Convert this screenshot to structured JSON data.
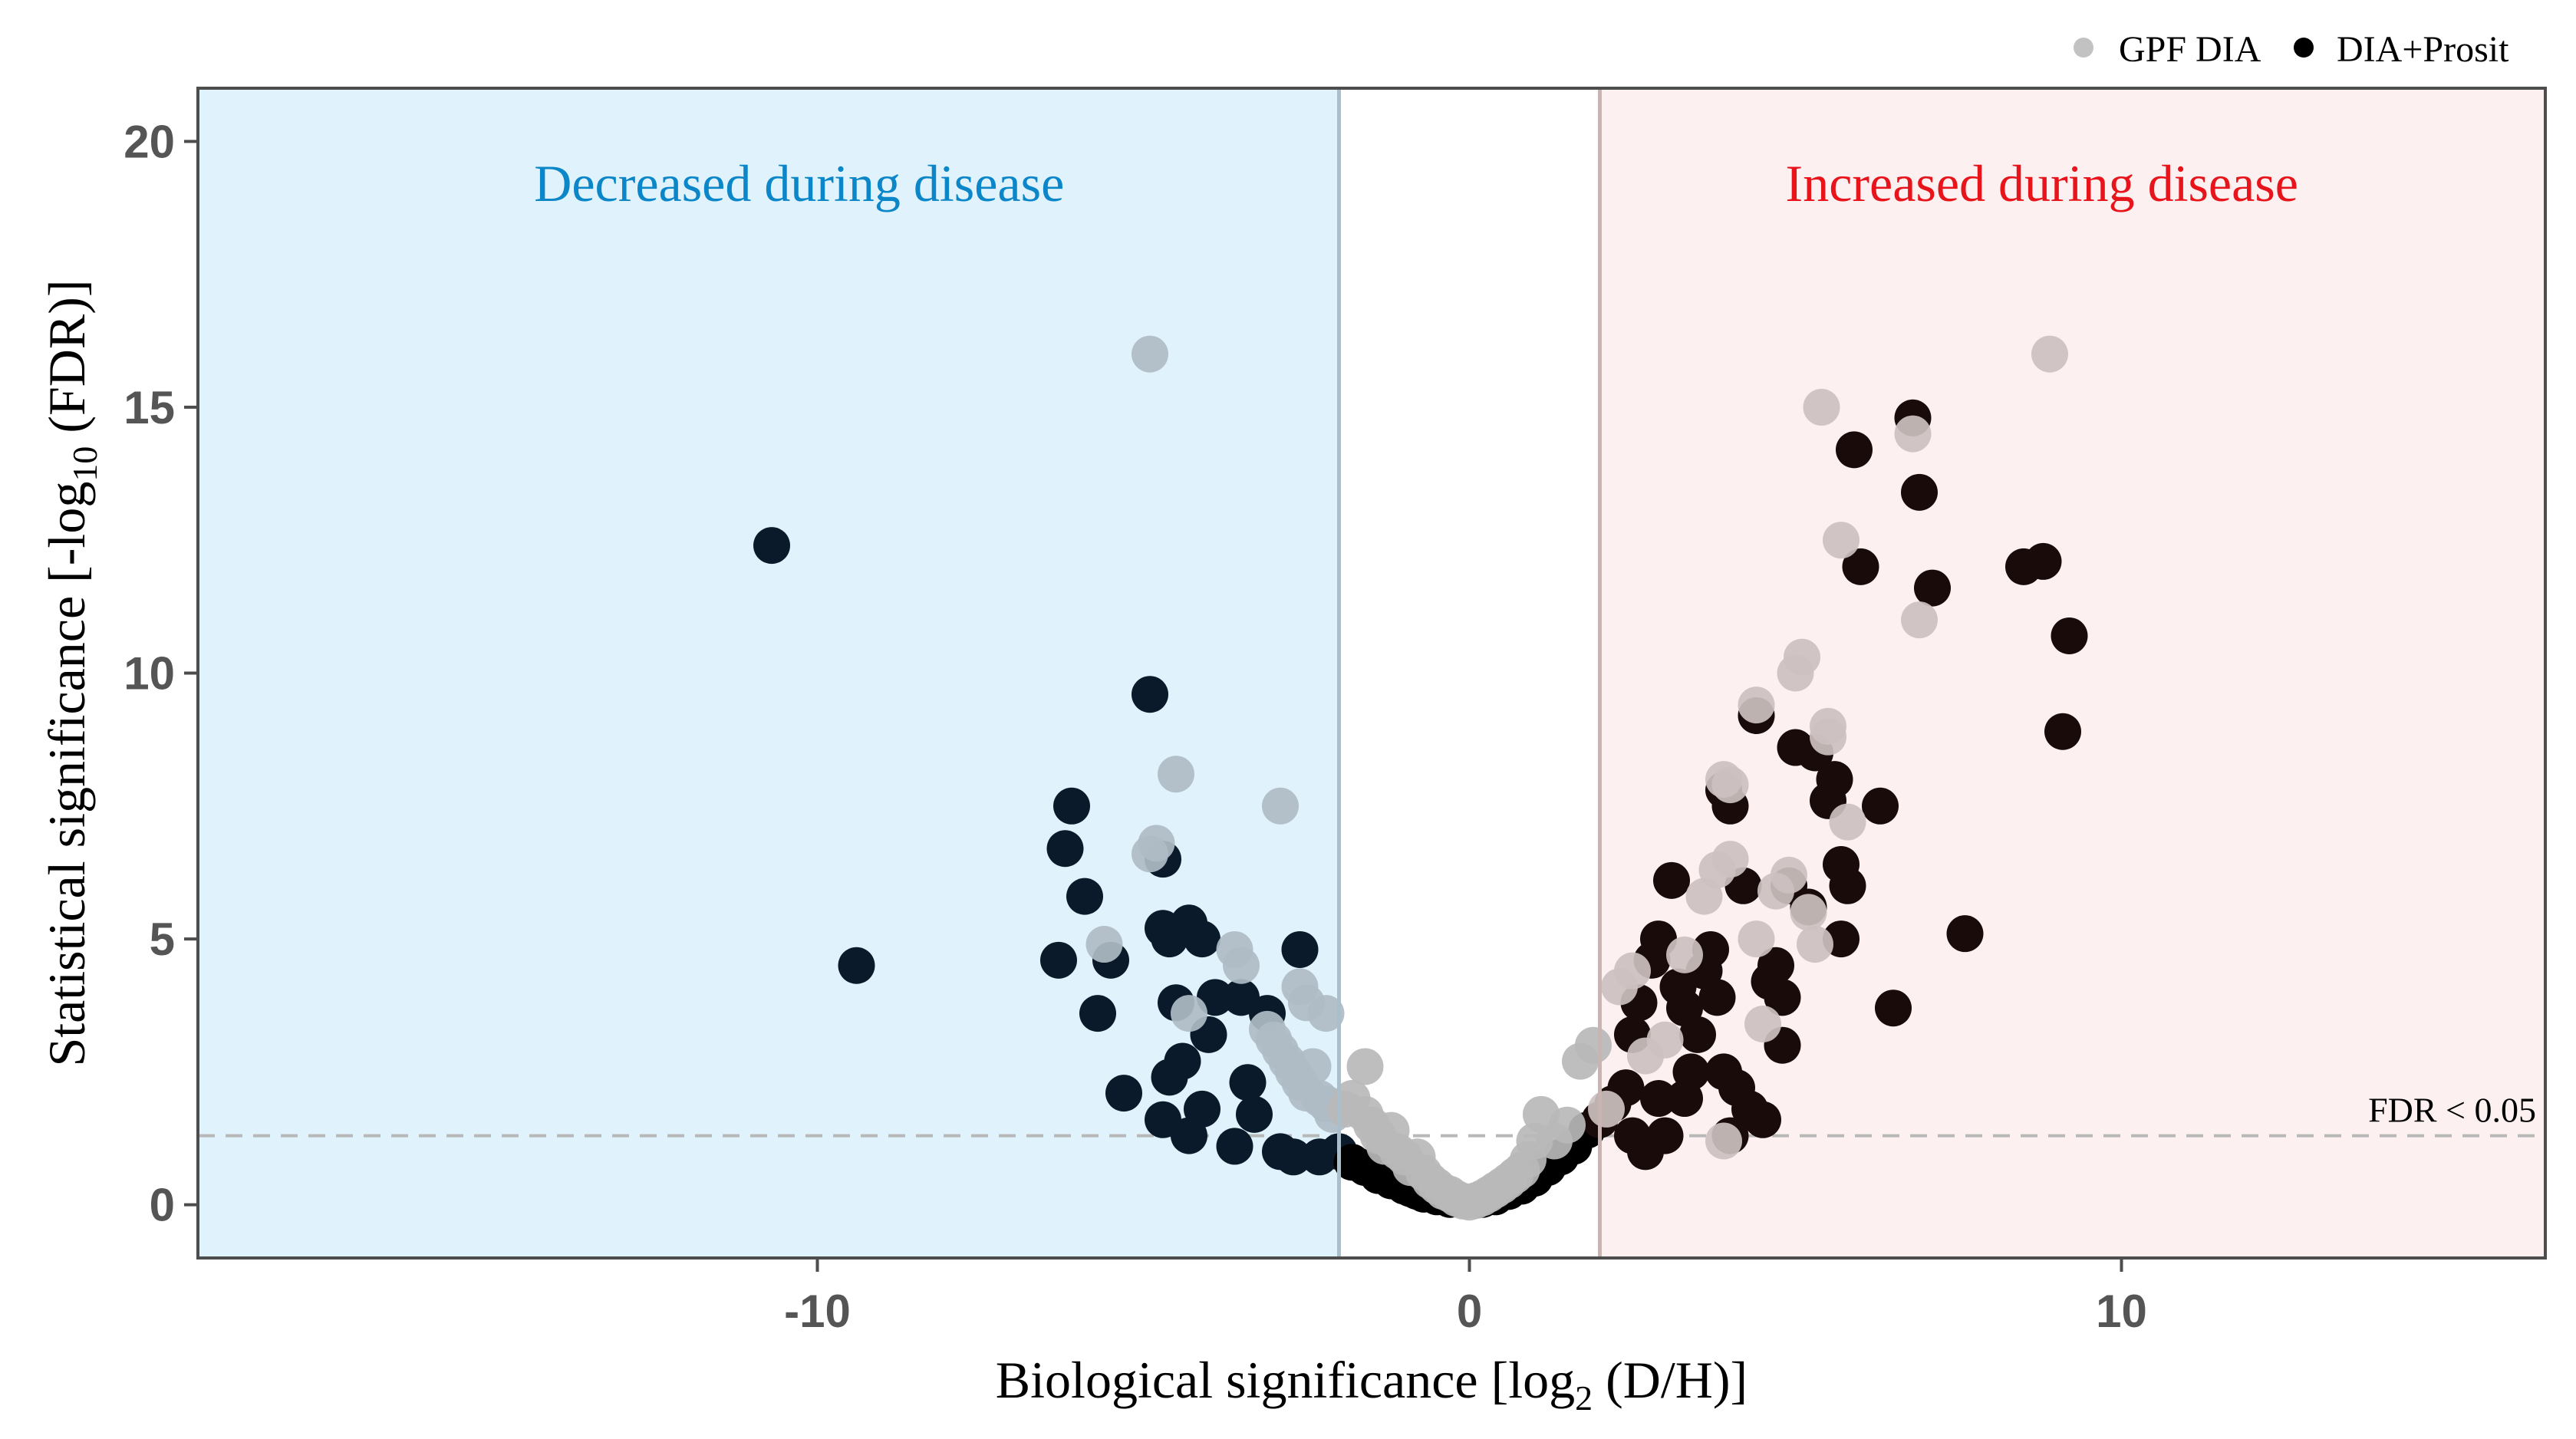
{
  "chart_data": {
    "type": "scatter",
    "xlabel_main": "Biological significance [log",
    "xlabel_sub": "2",
    "xlabel_tail": " (D/H)]",
    "ylabel_main": "Statistical significance [-log",
    "ylabel_sub": "10",
    "ylabel_tail": " (FDR)]",
    "xlim": [
      -19.5,
      16.5
    ],
    "ylim": [
      -1,
      21
    ],
    "x_ticks": [
      -10,
      0,
      10
    ],
    "y_ticks": [
      0,
      5,
      10,
      15,
      20
    ],
    "x_tick_labels": [
      "-10",
      "0",
      "10"
    ],
    "y_tick_labels": [
      "0",
      "5",
      "10",
      "15",
      "20"
    ],
    "grid": false,
    "legend_position": "top-right",
    "fold_change_threshold": 2,
    "fdr_threshold_y": 1.3,
    "threshold_label": "FDR < 0.05",
    "regions": {
      "decreased": {
        "label": "Decreased during disease",
        "color": "#0a86c9",
        "fill": "#e0f2fb"
      },
      "increased": {
        "label": "Increased during disease",
        "color": "#e8141c",
        "fill": "#fcf1f0"
      }
    },
    "series": [
      {
        "name": "GPF DIA",
        "color": "#c2c2c2",
        "points": [
          [
            -4.9,
            16
          ],
          [
            -2.9,
            7.5
          ],
          [
            -4.5,
            8.1
          ],
          [
            -4.9,
            6.6
          ],
          [
            -4.8,
            6.8
          ],
          [
            -5.6,
            4.9
          ],
          [
            -3.6,
            4.8
          ],
          [
            -3.5,
            4.5
          ],
          [
            -4.3,
            3.6
          ],
          [
            -2.6,
            4.1
          ],
          [
            -2.5,
            3.8
          ],
          [
            -2.2,
            3.6
          ],
          [
            -3.1,
            3.3
          ],
          [
            -3.0,
            3.1
          ],
          [
            -2.9,
            2.9
          ],
          [
            -2.8,
            2.7
          ],
          [
            -2.7,
            2.5
          ],
          [
            -2.6,
            2.3
          ],
          [
            -2.5,
            2.1
          ],
          [
            -2.4,
            2.6
          ],
          [
            -2.3,
            2.0
          ],
          [
            -2.2,
            1.9
          ],
          [
            -2.1,
            1.7
          ],
          [
            -1.9,
            1.8
          ],
          [
            -1.6,
            2.6
          ],
          [
            -1.8,
            2.0
          ],
          [
            -1.6,
            1.7
          ],
          [
            -1.5,
            1.5
          ],
          [
            -1.4,
            1.3
          ],
          [
            -1.3,
            1.1
          ],
          [
            -1.2,
            1.4
          ],
          [
            -1.1,
            1.0
          ],
          [
            -1.0,
            0.9
          ],
          [
            -0.9,
            0.7
          ],
          [
            -0.8,
            0.9
          ],
          [
            -0.7,
            0.6
          ],
          [
            -0.6,
            0.45
          ],
          [
            -0.5,
            0.35
          ],
          [
            -0.4,
            0.25
          ],
          [
            -0.3,
            0.2
          ],
          [
            -0.2,
            0.12
          ],
          [
            -0.1,
            0.07
          ],
          [
            0,
            0.05
          ],
          [
            0.1,
            0.08
          ],
          [
            0.2,
            0.13
          ],
          [
            0.3,
            0.2
          ],
          [
            0.4,
            0.28
          ],
          [
            0.5,
            0.36
          ],
          [
            0.6,
            0.45
          ],
          [
            0.7,
            0.55
          ],
          [
            0.8,
            0.65
          ],
          [
            0.9,
            0.85
          ],
          [
            1.0,
            1.2
          ],
          [
            1.1,
            1.7
          ],
          [
            1.3,
            1.2
          ],
          [
            1.5,
            1.5
          ],
          [
            1.7,
            2.7
          ],
          [
            1.9,
            3.0
          ],
          [
            2.1,
            1.8
          ],
          [
            2.3,
            4.1
          ],
          [
            2.5,
            4.4
          ],
          [
            2.7,
            2.8
          ],
          [
            3.0,
            3.1
          ],
          [
            3.3,
            4.7
          ],
          [
            3.6,
            5.8
          ],
          [
            3.8,
            6.3
          ],
          [
            4.0,
            6.5
          ],
          [
            4.0,
            7.9
          ],
          [
            3.9,
            8.0
          ],
          [
            4.4,
            5.0
          ],
          [
            4.5,
            3.4
          ],
          [
            4.7,
            5.9
          ],
          [
            4.9,
            6.2
          ],
          [
            5.0,
            10
          ],
          [
            5.1,
            10.3
          ],
          [
            5.3,
            4.9
          ],
          [
            5.5,
            9.0
          ],
          [
            5.5,
            8.8
          ],
          [
            5.8,
            7.2
          ],
          [
            5.7,
            12.5
          ],
          [
            5.4,
            15
          ],
          [
            6.8,
            14.5
          ],
          [
            6.9,
            11
          ],
          [
            8.9,
            16
          ],
          [
            3.9,
            1.2
          ],
          [
            4.4,
            9.4
          ],
          [
            5.2,
            5.5
          ]
        ]
      },
      {
        "name": "DIA+Prosit",
        "color": "#000000",
        "points": [
          [
            -10.7,
            12.4
          ],
          [
            -9.4,
            4.5
          ],
          [
            -4.9,
            9.6
          ],
          [
            -6.1,
            7.5
          ],
          [
            -6.2,
            6.7
          ],
          [
            -4.7,
            6.5
          ],
          [
            -5.9,
            5.8
          ],
          [
            -4.7,
            5.2
          ],
          [
            -4.6,
            5.0
          ],
          [
            -4.3,
            5.3
          ],
          [
            -4.1,
            5.0
          ],
          [
            -6.3,
            4.6
          ],
          [
            -5.5,
            4.6
          ],
          [
            -5.7,
            3.6
          ],
          [
            -4.5,
            3.8
          ],
          [
            -3.9,
            3.9
          ],
          [
            -3.5,
            3.9
          ],
          [
            -2.6,
            4.8
          ],
          [
            -4.0,
            3.2
          ],
          [
            -3.1,
            3.6
          ],
          [
            -4.4,
            2.7
          ],
          [
            -3.4,
            2.3
          ],
          [
            -4.6,
            2.4
          ],
          [
            -5.3,
            2.1
          ],
          [
            -3.3,
            1.7
          ],
          [
            -4.1,
            1.8
          ],
          [
            -4.7,
            1.6
          ],
          [
            -4.3,
            1.3
          ],
          [
            -3.6,
            1.1
          ],
          [
            -2.9,
            1.0
          ],
          [
            -2.7,
            0.9
          ],
          [
            -2.3,
            0.9
          ],
          [
            -2.0,
            1.0
          ],
          [
            -1.8,
            0.8
          ],
          [
            -1.6,
            0.7
          ],
          [
            -1.4,
            0.55
          ],
          [
            -1.2,
            0.45
          ],
          [
            -1.0,
            0.35
          ],
          [
            -0.9,
            0.3
          ],
          [
            -0.8,
            0.25
          ],
          [
            -0.7,
            0.2
          ],
          [
            -0.5,
            0.15
          ],
          [
            -0.3,
            0.1
          ],
          [
            0.2,
            0.1
          ],
          [
            0.4,
            0.15
          ],
          [
            0.6,
            0.25
          ],
          [
            0.8,
            0.35
          ],
          [
            1.0,
            0.5
          ],
          [
            1.2,
            0.7
          ],
          [
            1.4,
            0.9
          ],
          [
            1.6,
            1.1
          ],
          [
            1.8,
            1.4
          ],
          [
            2.0,
            1.6
          ],
          [
            2.2,
            1.9
          ],
          [
            2.4,
            2.2
          ],
          [
            2.5,
            1.3
          ],
          [
            2.7,
            1.0
          ],
          [
            2.5,
            3.2
          ],
          [
            2.6,
            3.8
          ],
          [
            2.8,
            4.6
          ],
          [
            2.9,
            5.0
          ],
          [
            3.1,
            6.1
          ],
          [
            3.2,
            4.1
          ],
          [
            3.3,
            3.7
          ],
          [
            3.4,
            2.5
          ],
          [
            3.5,
            3.2
          ],
          [
            3.6,
            4.4
          ],
          [
            3.7,
            4.8
          ],
          [
            3.8,
            3.9
          ],
          [
            3.9,
            7.8
          ],
          [
            4.0,
            7.5
          ],
          [
            3.9,
            2.5
          ],
          [
            4.1,
            2.2
          ],
          [
            4.3,
            1.8
          ],
          [
            4.5,
            1.6
          ],
          [
            4.2,
            6.0
          ],
          [
            4.4,
            9.2
          ],
          [
            4.6,
            4.2
          ],
          [
            4.7,
            4.5
          ],
          [
            4.8,
            3.9
          ],
          [
            4.9,
            6.0
          ],
          [
            5.0,
            8.6
          ],
          [
            4.8,
            3.0
          ],
          [
            5.2,
            5.6
          ],
          [
            5.3,
            8.5
          ],
          [
            5.5,
            7.6
          ],
          [
            5.6,
            8.0
          ],
          [
            5.7,
            6.4
          ],
          [
            5.8,
            6.0
          ],
          [
            5.7,
            5.0
          ],
          [
            5.9,
            14.2
          ],
          [
            6.0,
            12.0
          ],
          [
            6.3,
            7.5
          ],
          [
            6.5,
            3.7
          ],
          [
            7.1,
            11.6
          ],
          [
            6.8,
            14.8
          ],
          [
            6.9,
            13.4
          ],
          [
            7.6,
            5.1
          ],
          [
            8.5,
            12.0
          ],
          [
            8.8,
            12.1
          ],
          [
            9.2,
            10.7
          ],
          [
            9.1,
            8.9
          ],
          [
            3.0,
            1.3
          ],
          [
            2.9,
            2.0
          ],
          [
            3.3,
            2.0
          ],
          [
            4.0,
            1.3
          ]
        ]
      }
    ]
  }
}
